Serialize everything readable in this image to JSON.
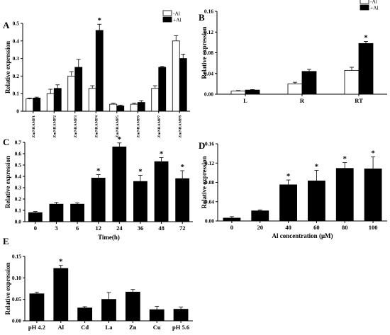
{
  "colors": {
    "filled": "#000000",
    "open": "#ffffff",
    "axis": "#000000"
  },
  "chart_data": [
    {
      "panel": "A",
      "type": "bar",
      "ylabel": "Relative expression",
      "xlabel": "",
      "ylim": [
        0,
        0.5
      ],
      "yticks": [
        "0",
        "0.1",
        "0.2",
        "0.3",
        "0.4",
        "0.5"
      ],
      "categories": [
        "ZmNRAMP1",
        "ZmNRAMP2",
        "ZmNRAMP3",
        "ZmNRAMP4",
        "ZmNRAMP5",
        "ZmNRAMP6",
        "ZmNRAMP7",
        "ZmNRAMP8"
      ],
      "legend": {
        "placement": "top-right",
        "entries": [
          "-Al",
          "+Al"
        ]
      },
      "series": [
        {
          "name": "-Al",
          "fill": "open",
          "values": [
            0.07,
            0.1,
            0.2,
            0.13,
            0.04,
            0.04,
            0.13,
            0.4
          ],
          "errors": [
            0.005,
            0.025,
            0.025,
            0.015,
            0.005,
            0.005,
            0.015,
            0.03
          ]
        },
        {
          "name": "+Al",
          "fill": "filled",
          "values": [
            0.075,
            0.13,
            0.25,
            0.46,
            0.03,
            0.05,
            0.25,
            0.3
          ],
          "errors": [
            0.005,
            0.02,
            0.045,
            0.035,
            0.005,
            0.01,
            0.005,
            0.025
          ]
        }
      ],
      "significant": [
        3
      ],
      "star": "*"
    },
    {
      "panel": "B",
      "type": "bar",
      "ylabel": "Relative expression",
      "xlabel": "",
      "ylim": [
        0,
        0.16
      ],
      "yticks": [
        "0.00",
        "0.04",
        "0.08",
        "0.12",
        "0.16"
      ],
      "categories": [
        "L",
        "R",
        "RT"
      ],
      "legend": {
        "placement": "top-right",
        "entries": [
          "-Al",
          "+Al"
        ]
      },
      "series": [
        {
          "name": "-Al",
          "fill": "open",
          "values": [
            0.006,
            0.02,
            0.046
          ],
          "errors": [
            0.001,
            0.003,
            0.006
          ]
        },
        {
          "name": "+Al",
          "fill": "filled",
          "values": [
            0.008,
            0.044,
            0.098
          ],
          "errors": [
            0.001,
            0.004,
            0.004
          ]
        }
      ],
      "significant": [
        2
      ],
      "star": "*"
    },
    {
      "panel": "C",
      "type": "bar",
      "ylabel": "Relative expression",
      "xlabel": "Time(h)",
      "ylim": [
        0,
        0.7
      ],
      "yticks": [
        "0.0",
        "0.1",
        "0.2",
        "0.3",
        "0.4",
        "0.5",
        "0.6",
        "0.7"
      ],
      "categories": [
        "0",
        "3",
        "6",
        "12",
        "24",
        "36",
        "48",
        "72"
      ],
      "series": [
        {
          "name": "",
          "fill": "filled",
          "values": [
            0.08,
            0.155,
            0.155,
            0.385,
            0.66,
            0.355,
            0.53,
            0.38
          ],
          "errors": [
            0.01,
            0.015,
            0.01,
            0.03,
            0.035,
            0.055,
            0.035,
            0.07
          ]
        }
      ],
      "significant": [
        3,
        4,
        5,
        6,
        7
      ],
      "star": "*"
    },
    {
      "panel": "D",
      "type": "bar",
      "ylabel": "Relative expression",
      "xlabel": "Al concentration (μM)",
      "ylim": [
        0,
        0.16
      ],
      "yticks": [
        "0.00",
        "0.04",
        "0.08",
        "0.12",
        "0.16"
      ],
      "categories": [
        "0",
        "20",
        "40",
        "60",
        "80",
        "100"
      ],
      "series": [
        {
          "name": "",
          "fill": "filled",
          "values": [
            0.006,
            0.021,
            0.075,
            0.083,
            0.109,
            0.108
          ],
          "errors": [
            0.003,
            0.002,
            0.01,
            0.022,
            0.012,
            0.025
          ]
        }
      ],
      "significant": [
        2,
        3,
        4,
        5
      ],
      "star": "*"
    },
    {
      "panel": "E",
      "type": "bar",
      "ylabel": "Relative expression",
      "xlabel": "",
      "ylim": [
        0,
        0.15
      ],
      "yticks": [
        "0.00",
        "0.05",
        "0.10",
        "0.15"
      ],
      "categories": [
        "pH 4.2",
        "Al",
        "Cd",
        "La",
        "Zn",
        "Cu",
        "pH 5.6"
      ],
      "series": [
        {
          "name": "",
          "fill": "filled",
          "values": [
            0.063,
            0.122,
            0.03,
            0.05,
            0.067,
            0.026,
            0.027
          ],
          "errors": [
            0.004,
            0.007,
            0.003,
            0.016,
            0.006,
            0.008,
            0.005
          ]
        }
      ],
      "significant": [
        1
      ],
      "star": "*"
    }
  ]
}
